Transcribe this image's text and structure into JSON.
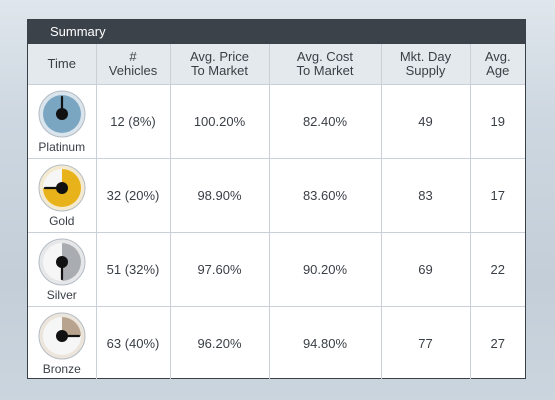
{
  "panel": {
    "title": "Summary"
  },
  "columns": [
    {
      "label": "Time"
    },
    {
      "label": "#\nVehicles"
    },
    {
      "label": "Avg. Price\nTo Market"
    },
    {
      "label": "Avg. Cost\nTo Market"
    },
    {
      "label": "Mkt. Day\nSupply"
    },
    {
      "label": "Avg.\nAge"
    }
  ],
  "rows": [
    {
      "tier": "Platinum",
      "dial": {
        "fill_color": "#7aa6c2",
        "rim_color": "#d9e4ec",
        "fill_fraction": 1.0,
        "needle_angle_deg": 0
      },
      "vehicles": "12 (8%)",
      "price_to_market": "100.20%",
      "cost_to_market": "82.40%",
      "day_supply": "49",
      "avg_age": "19"
    },
    {
      "tier": "Gold",
      "dial": {
        "fill_color": "#e8b21a",
        "rim_color": "#f3ead0",
        "fill_fraction": 0.75,
        "needle_angle_deg": 270
      },
      "vehicles": "32 (20%)",
      "price_to_market": "98.90%",
      "cost_to_market": "83.60%",
      "day_supply": "83",
      "avg_age": "17"
    },
    {
      "tier": "Silver",
      "dial": {
        "fill_color": "#a9adb2",
        "rim_color": "#e6e7e9",
        "fill_fraction": 0.5,
        "needle_angle_deg": 180
      },
      "vehicles": "51 (32%)",
      "price_to_market": "97.60%",
      "cost_to_market": "90.20%",
      "day_supply": "69",
      "avg_age": "22"
    },
    {
      "tier": "Bronze",
      "dial": {
        "fill_color": "#b8a48e",
        "rim_color": "#ece5dc",
        "fill_fraction": 0.25,
        "needle_angle_deg": 90
      },
      "vehicles": "63 (40%)",
      "price_to_market": "96.20%",
      "cost_to_market": "94.80%",
      "day_supply": "77",
      "avg_age": "27"
    }
  ]
}
